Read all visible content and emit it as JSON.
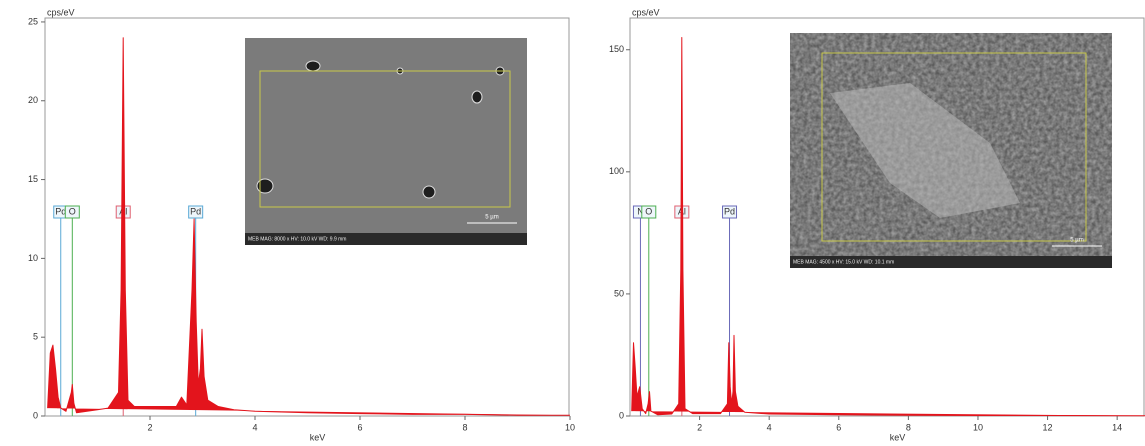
{
  "chart_data": [
    {
      "type": "spectrum",
      "y_label": "cps/eV",
      "x_label": "keV",
      "xlim": [
        0,
        10
      ],
      "ylim": [
        0,
        25.25
      ],
      "xticks": [
        2,
        4,
        6,
        8,
        10
      ],
      "yticks": [
        0,
        5,
        10,
        15,
        20,
        25
      ],
      "series": [
        {
          "color": "#e3141c",
          "x": [
            0.05,
            0.1,
            0.15,
            0.2,
            0.25,
            0.3,
            0.4,
            0.5,
            0.52,
            0.55,
            0.6,
            0.8,
            1.0,
            1.2,
            1.4,
            1.45,
            1.49,
            1.53,
            1.58,
            1.7,
            2.0,
            2.3,
            2.5,
            2.6,
            2.7,
            2.8,
            2.84,
            2.88,
            2.92,
            2.96,
            2.99,
            3.03,
            3.1,
            3.3,
            3.6,
            4,
            5,
            6,
            7,
            8,
            9,
            10
          ],
          "values": [
            0.5,
            4,
            4.5,
            3,
            1.2,
            0.5,
            0.3,
            1.5,
            2.0,
            0.8,
            0.2,
            0.3,
            0.4,
            0.5,
            1.5,
            8,
            24,
            8,
            1,
            0.6,
            0.6,
            0.6,
            0.6,
            1.2,
            0.7,
            8,
            12.5,
            6,
            2,
            3,
            5.5,
            2.5,
            1,
            0.6,
            0.4,
            0.3,
            0.2,
            0.15,
            0.1,
            0.1,
            0.05,
            0.05
          ]
        }
      ],
      "annotations": [
        {
          "label": "Pd",
          "x": 0.3,
          "color": "#5aa9d6"
        },
        {
          "label": "O",
          "x": 0.52,
          "color": "#4caf50"
        },
        {
          "label": "Al",
          "x": 1.49,
          "color": "#e06070"
        },
        {
          "label": "Pd",
          "x": 2.87,
          "color": "#5aa9d6"
        }
      ],
      "inset": {
        "caption": "MEB  MAG: 8000 x  HV: 10.0 kV  WD: 9.9 mm",
        "scale": "5 µm"
      }
    },
    {
      "type": "spectrum",
      "y_label": "cps/eV",
      "x_label": "keV",
      "xlim": [
        0,
        14.8
      ],
      "ylim": [
        0,
        163
      ],
      "xticks": [
        2,
        4,
        6,
        8,
        10,
        12,
        14
      ],
      "yticks": [
        0,
        50,
        100,
        150
      ],
      "series": [
        {
          "color": "#e3141c",
          "x": [
            0.05,
            0.1,
            0.15,
            0.2,
            0.28,
            0.35,
            0.45,
            0.52,
            0.56,
            0.6,
            0.8,
            1.2,
            1.4,
            1.46,
            1.49,
            1.52,
            1.58,
            1.8,
            2.2,
            2.6,
            2.8,
            2.84,
            2.88,
            2.92,
            2.96,
            2.99,
            3.03,
            3.1,
            3.3,
            4,
            6,
            8,
            10,
            12,
            14.8
          ],
          "values": [
            2,
            30,
            20,
            8,
            12,
            3,
            1,
            5,
            10,
            2,
            0.5,
            0.8,
            5,
            60,
            155,
            60,
            3,
            1,
            1,
            1,
            5,
            30,
            12,
            5,
            10,
            33,
            10,
            4,
            1.5,
            0.8,
            0.5,
            0.3,
            0.2,
            0.2,
            0.1
          ]
        }
      ],
      "annotations": [
        {
          "label": "N",
          "x": 0.3,
          "color": "#6a6ab8"
        },
        {
          "label": "O",
          "x": 0.54,
          "color": "#4caf50"
        },
        {
          "label": "Al",
          "x": 1.49,
          "color": "#e06070"
        },
        {
          "label": "Pd",
          "x": 2.86,
          "color": "#6a6ab8"
        }
      ],
      "inset": {
        "caption": "MEB  MAG: 4500 x  HV: 15.0 kV  WD: 10.1 mm",
        "scale": "5 µm"
      }
    }
  ]
}
